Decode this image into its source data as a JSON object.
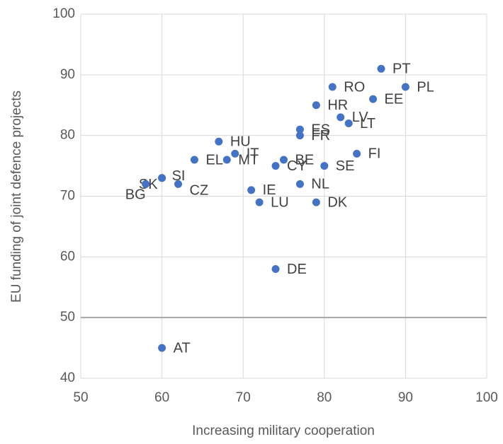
{
  "chart_data": {
    "type": "scatter",
    "x_label": "Increasing military cooperation",
    "y_label": "EU funding of joint defence projects",
    "labels": [
      "PT",
      "PL",
      "RO",
      "EE",
      "HR",
      "LV",
      "LT",
      "ES",
      "FR",
      "HU",
      "IT",
      "MT",
      "EL",
      "BE",
      "CY",
      "SE",
      "FI",
      "SI",
      "SK",
      "BG",
      "CZ",
      "IE",
      "NL",
      "LU",
      "DK",
      "DE",
      "AT"
    ],
    "x": [
      87,
      90,
      81,
      86,
      79,
      82,
      83,
      77,
      77,
      67,
      69,
      68,
      64,
      75,
      74,
      80,
      84,
      60,
      60,
      58,
      62,
      71,
      77,
      72,
      79,
      74,
      60
    ],
    "y": [
      91,
      88,
      88,
      86,
      85,
      83,
      82,
      81,
      80,
      79,
      77,
      76,
      76,
      76,
      75,
      75,
      77,
      73,
      73,
      72,
      72,
      71,
      72,
      69,
      69,
      58,
      45
    ],
    "color": "#4472c4",
    "xlim": [
      50,
      100
    ],
    "xticks": [
      50,
      60,
      70,
      80,
      90,
      100
    ],
    "ylim": [
      40,
      100
    ],
    "yticks": [
      40,
      50,
      60,
      70,
      80,
      90,
      100
    ],
    "grid": true,
    "reference_line": 50
  }
}
